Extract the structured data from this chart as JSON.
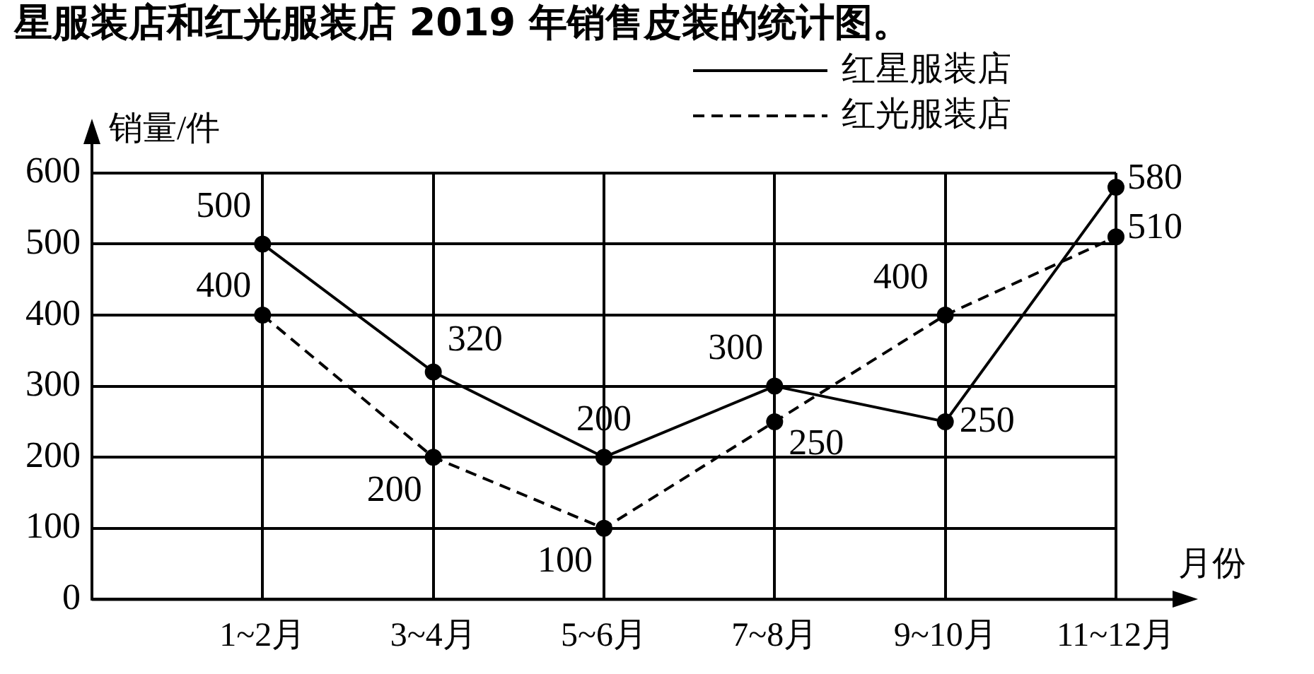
{
  "chart_data": {
    "type": "line",
    "title": "星服装店和红光服装店 2019 年销售皮装的统计图。",
    "xlabel": "月份",
    "ylabel": "销量/件",
    "categories": [
      null,
      "1~2月",
      "3~4月",
      "5~6月",
      "7~8月",
      "9~10月",
      "11~12月"
    ],
    "series": [
      {
        "name": "红星服装店",
        "color": "#000000",
        "line_style": "solid",
        "values": [
          null,
          500,
          320,
          200,
          300,
          250,
          580
        ]
      },
      {
        "name": "红光服装店",
        "color": "#000000",
        "line_style": "dashed",
        "values": [
          null,
          400,
          200,
          100,
          250,
          400,
          510
        ]
      }
    ],
    "ylim": [
      0,
      600
    ],
    "yticks": [
      0,
      100,
      200,
      300,
      400,
      500,
      600
    ],
    "grid": true,
    "legend": "top right",
    "marker": "circle",
    "data_labels": true
  }
}
